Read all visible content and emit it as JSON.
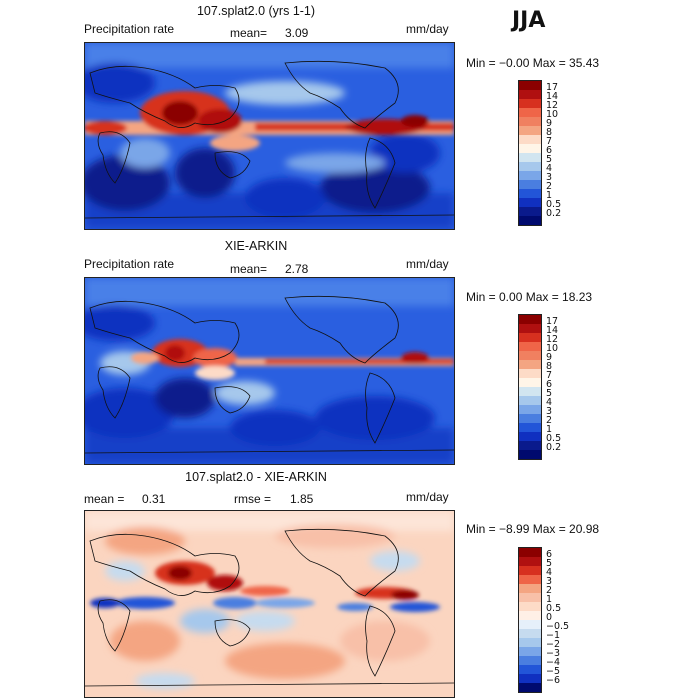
{
  "season": "JJA",
  "panels": [
    {
      "title": "107.splat2.0 (yrs 1-1)",
      "left_label": "Precipitation rate",
      "stat1_label": "mean=",
      "stat1_value": "3.09",
      "units": "mm/day",
      "minmax": "Min =  −0.00 Max =  35.43",
      "colorbar": {
        "labels": [
          "17",
          "14",
          "12",
          "10",
          "9",
          "8",
          "7",
          "6",
          "5",
          "4",
          "3",
          "2",
          "1",
          "0.5",
          "0.2"
        ],
        "colors": [
          "#8b0000",
          "#b01010",
          "#d7301f",
          "#ef6548",
          "#f08060",
          "#f4a582",
          "#fddbc7",
          "#fff5e8",
          "#d1e5f0",
          "#a6c8ec",
          "#7aa6e8",
          "#4a7ee0",
          "#2255d8",
          "#1030c0",
          "#0a1a8c",
          "#000a6e"
        ]
      },
      "map_style": "precip"
    },
    {
      "title": "XIE-ARKIN",
      "left_label": "Precipitation rate",
      "stat1_label": "mean=",
      "stat1_value": "2.78",
      "units": "mm/day",
      "minmax": "Min =   0.00 Max =  18.23",
      "colorbar": {
        "labels": [
          "17",
          "14",
          "12",
          "10",
          "9",
          "8",
          "7",
          "6",
          "5",
          "4",
          "3",
          "2",
          "1",
          "0.5",
          "0.2"
        ],
        "colors": [
          "#8b0000",
          "#b01010",
          "#d7301f",
          "#ef6548",
          "#f08060",
          "#f4a582",
          "#fddbc7",
          "#fff5e8",
          "#d1e5f0",
          "#a6c8ec",
          "#7aa6e8",
          "#4a7ee0",
          "#2255d8",
          "#1030c0",
          "#0a1a8c",
          "#000a6e"
        ]
      },
      "map_style": "precip"
    },
    {
      "title": "107.splat2.0 - XIE-ARKIN",
      "left_label": "",
      "stat1_label": "mean =",
      "stat1_value": "0.31",
      "stat2_label": "rmse =",
      "stat2_value": "1.85",
      "units": "mm/day",
      "minmax": "Min =  −8.99 Max =  20.98",
      "colorbar": {
        "labels": [
          "6",
          "5",
          "4",
          "3",
          "2",
          "1",
          "0.5",
          "0",
          "−0.5",
          "−1",
          "−2",
          "−3",
          "−4",
          "−5",
          "−6"
        ],
        "colors": [
          "#8b0000",
          "#b01010",
          "#d7301f",
          "#ef6548",
          "#f4a582",
          "#f8c0a8",
          "#fddbc7",
          "#fff0e6",
          "#e6f0fa",
          "#c6dbef",
          "#a6c8ec",
          "#7aa6e8",
          "#4a7ee0",
          "#2255d8",
          "#1030c0",
          "#000a6e"
        ]
      },
      "map_style": "diff"
    }
  ]
}
